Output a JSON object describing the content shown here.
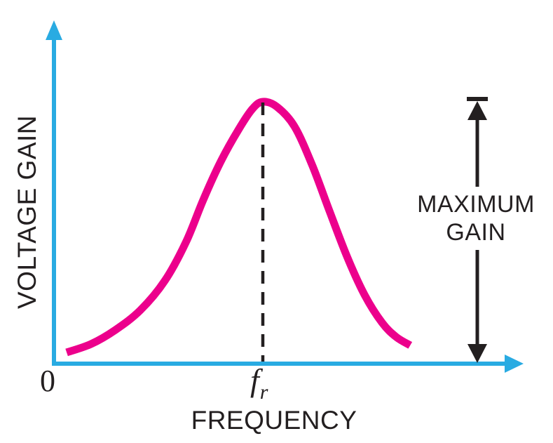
{
  "figure": {
    "ylabel": "VOLTAGE GAIN",
    "xlabel": "FREQUENCY",
    "origin_label": "0",
    "fr_label": {
      "base": "f",
      "sub": "r"
    },
    "annotation": {
      "line1": "MAXIMUM",
      "line2": "GAIN"
    },
    "colors": {
      "axis": "#29ABE2",
      "curve": "#EC008C",
      "ink": "#231F20",
      "background": "#FFFFFF"
    }
  },
  "chart_data": {
    "type": "line",
    "title": "",
    "xlabel": "FREQUENCY",
    "ylabel": "VOLTAGE GAIN",
    "axes_numeric": false,
    "x_range": [
      0,
      1
    ],
    "y_range": [
      0,
      1
    ],
    "x_origin_label": "0",
    "x_tick_labels": [
      {
        "label": "f_r",
        "x": 0.462
      }
    ],
    "annotations": [
      {
        "text": "MAXIMUM GAIN",
        "role": "max-gain-extent-arrow"
      }
    ],
    "fr_position": 0.462,
    "max_gain": 1.0,
    "grid": false,
    "legend": false,
    "series": [
      {
        "name": "voltage gain",
        "x": [
          0.028,
          0.082,
          0.136,
          0.191,
          0.245,
          0.292,
          0.33,
          0.369,
          0.408,
          0.439,
          0.462,
          0.493,
          0.532,
          0.571,
          0.609,
          0.648,
          0.687,
          0.726,
          0.757,
          0.788
        ],
        "y": [
          0.043,
          0.075,
          0.129,
          0.204,
          0.316,
          0.464,
          0.625,
          0.772,
          0.893,
          0.973,
          1.0,
          0.981,
          0.906,
          0.759,
          0.585,
          0.41,
          0.263,
          0.156,
          0.102,
          0.07
        ]
      }
    ]
  }
}
